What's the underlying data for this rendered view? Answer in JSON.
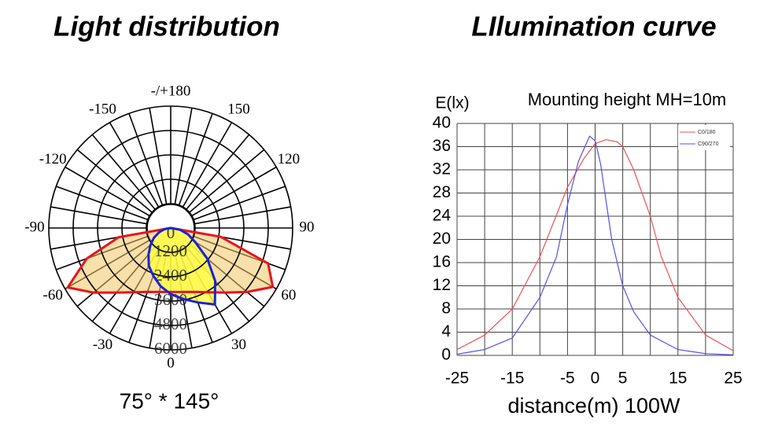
{
  "chart_data": [
    {
      "type": "polar",
      "title": "Light distribution",
      "caption": "75° * 145°",
      "rlim": [
        0,
        6000
      ],
      "rticks": [
        0,
        1200,
        2400,
        3600,
        4800,
        6000
      ],
      "angle_ticks": [
        {
          "value": 180,
          "label": "-/+180"
        },
        150,
        -150,
        120,
        -120,
        90,
        -90,
        60,
        -60,
        30,
        -30,
        0
      ],
      "series": [
        {
          "name": "C0/180",
          "color": "#e8141e",
          "fill": "#f3c766",
          "theta": [
            -90,
            -80,
            -70,
            -60,
            -50,
            -40,
            -30,
            -20,
            -10,
            0,
            10,
            20,
            30,
            40,
            50,
            60,
            70,
            80,
            90
          ],
          "values": [
            0,
            2600,
            4400,
            5850,
            4950,
            4150,
            3650,
            3350,
            3200,
            3150,
            3200,
            3350,
            3650,
            4150,
            4900,
            5800,
            5100,
            2500,
            0
          ]
        },
        {
          "name": "C90/270",
          "color": "#1a22d8",
          "fill": "#ffff40",
          "theta": [
            -90,
            -80,
            -70,
            -60,
            -50,
            -40,
            -30,
            -20,
            -10,
            0,
            10,
            20,
            30,
            40,
            50,
            60,
            70,
            80,
            90
          ],
          "values": [
            0,
            300,
            600,
            950,
            1300,
            1700,
            2150,
            2500,
            2900,
            3250,
            3550,
            3900,
            4350,
            3400,
            2350,
            1400,
            900,
            450,
            0
          ]
        }
      ]
    },
    {
      "type": "line",
      "title": "LIlumination curve",
      "subtitle": "Mounting height  MH=10m",
      "y_label": "E(lx)",
      "x_label": "distance(m) 100W",
      "xlim": [
        -25,
        25
      ],
      "ylim": [
        0,
        40
      ],
      "xticks": [
        -25,
        -15,
        -5,
        0,
        5,
        15,
        25
      ],
      "xgrid": [
        -25,
        -20,
        -15,
        -10,
        -5,
        0,
        5,
        10,
        15,
        20,
        25
      ],
      "yticks": [
        0,
        4,
        8,
        12,
        16,
        20,
        24,
        28,
        32,
        36,
        40
      ],
      "grid": true,
      "legend": "upper right",
      "series": [
        {
          "name": "C0/180",
          "color": "#f05050",
          "x": [
            -25,
            -20,
            -15,
            -10,
            -5,
            -2,
            0,
            2,
            4,
            5,
            7,
            10,
            12,
            15,
            20,
            25
          ],
          "values": [
            1.0,
            3.5,
            8,
            17,
            29,
            34,
            36.5,
            37.2,
            36.8,
            36,
            32,
            24,
            17,
            10,
            3.5,
            0.8
          ]
        },
        {
          "name": "C90/270",
          "color": "#5050e8",
          "x": [
            -25,
            -20,
            -15,
            -10,
            -7,
            -5,
            -3,
            -1,
            0,
            1,
            3,
            5,
            7,
            10,
            15,
            20,
            25
          ],
          "values": [
            0.2,
            1,
            3,
            10,
            17,
            26,
            33.5,
            37.8,
            37,
            33,
            20,
            12,
            7.5,
            3.5,
            1,
            0.3,
            0.1
          ]
        }
      ]
    }
  ]
}
